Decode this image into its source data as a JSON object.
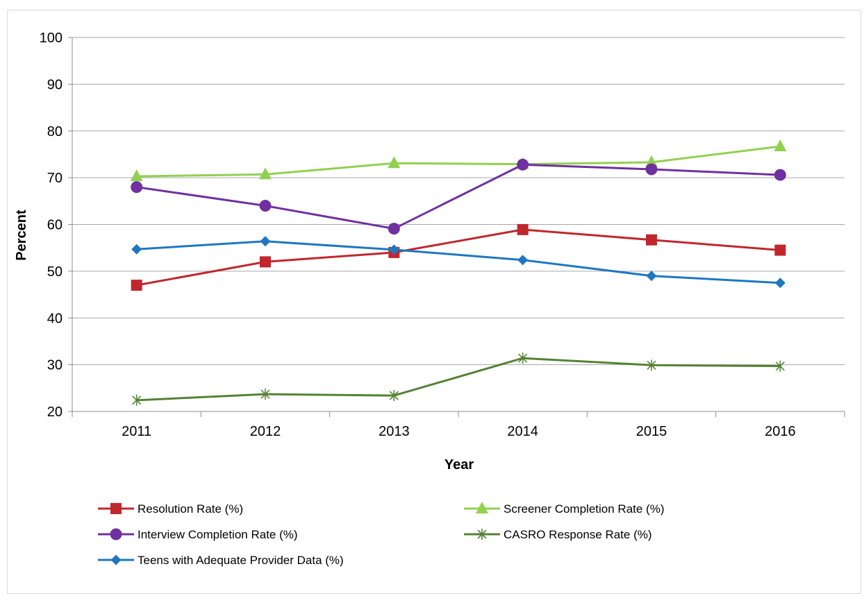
{
  "chart_data": {
    "type": "line",
    "title": "",
    "xlabel": "Year",
    "ylabel": "Percent",
    "categories": [
      "2011",
      "2012",
      "2013",
      "2014",
      "2015",
      "2016"
    ],
    "ylim": [
      20,
      100
    ],
    "yticks": [
      20,
      30,
      40,
      50,
      60,
      70,
      80,
      90,
      100
    ],
    "grid": true,
    "legend_position": "bottom",
    "series": [
      {
        "name": "Resolution Rate (%)",
        "values": [
          47.0,
          52.0,
          54.0,
          58.9,
          56.7,
          54.5
        ],
        "color": "#c0272d",
        "marker": "square"
      },
      {
        "name": "Screener Completion Rate (%)",
        "values": [
          70.3,
          70.7,
          73.1,
          72.9,
          73.3,
          76.7
        ],
        "color": "#92d050",
        "marker": "triangle"
      },
      {
        "name": "Interview Completion Rate (%)",
        "values": [
          68.0,
          64.0,
          59.1,
          72.8,
          71.8,
          70.6
        ],
        "color": "#7030a0",
        "marker": "circle"
      },
      {
        "name": "CASRO Response Rate (%)",
        "values": [
          22.4,
          23.7,
          23.4,
          31.4,
          29.9,
          29.7
        ],
        "color": "#548235",
        "marker": "asterisk"
      },
      {
        "name": "Teens with Adequate Provider Data (%)",
        "values": [
          54.7,
          56.4,
          54.6,
          52.4,
          49.0,
          47.5
        ],
        "color": "#1f77c0",
        "marker": "diamond"
      }
    ]
  }
}
